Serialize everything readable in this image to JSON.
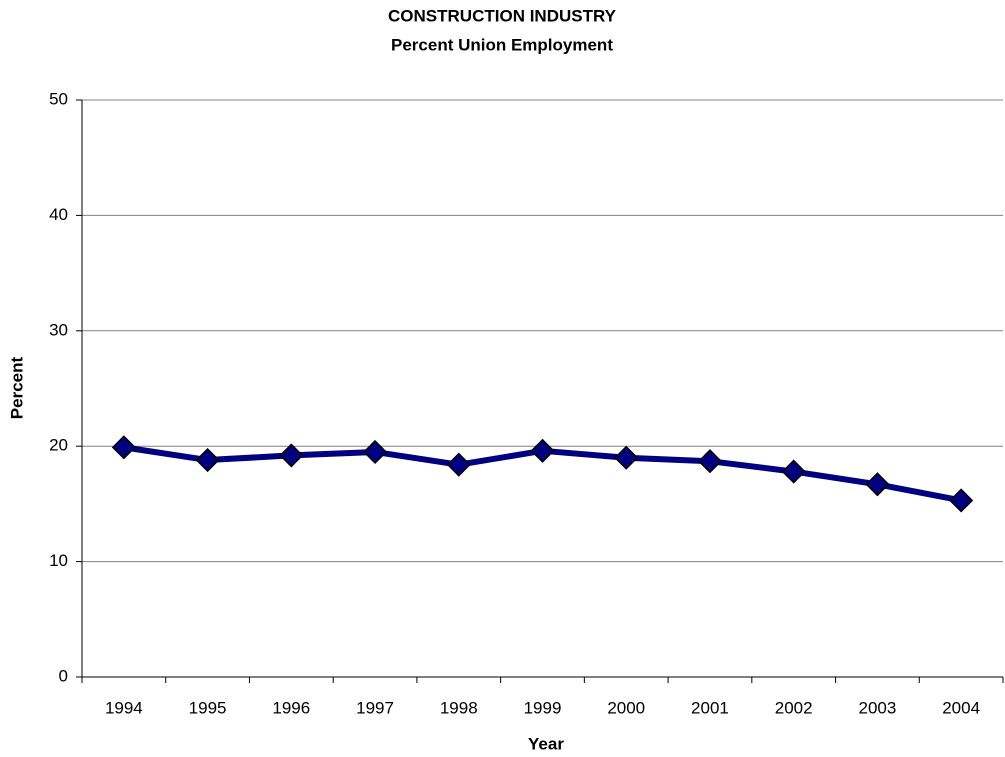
{
  "chart_data": {
    "type": "line",
    "title": "CONSTRUCTION INDUSTRY",
    "subtitle": "Percent Union Employment",
    "x_label": "Year",
    "y_label": "Percent",
    "categories": [
      "1994",
      "1995",
      "1996",
      "1997",
      "1998",
      "1999",
      "2000",
      "2001",
      "2002",
      "2003",
      "2004"
    ],
    "series": [
      {
        "name": "Percent Union Employment",
        "color": "#000080",
        "values": [
          19.9,
          18.8,
          19.2,
          19.5,
          18.4,
          19.6,
          19.0,
          18.7,
          17.8,
          16.7,
          15.3
        ]
      }
    ],
    "ylim": [
      0,
      50
    ],
    "yticks": [
      0,
      10,
      20,
      30,
      40,
      50
    ],
    "grid": true
  }
}
